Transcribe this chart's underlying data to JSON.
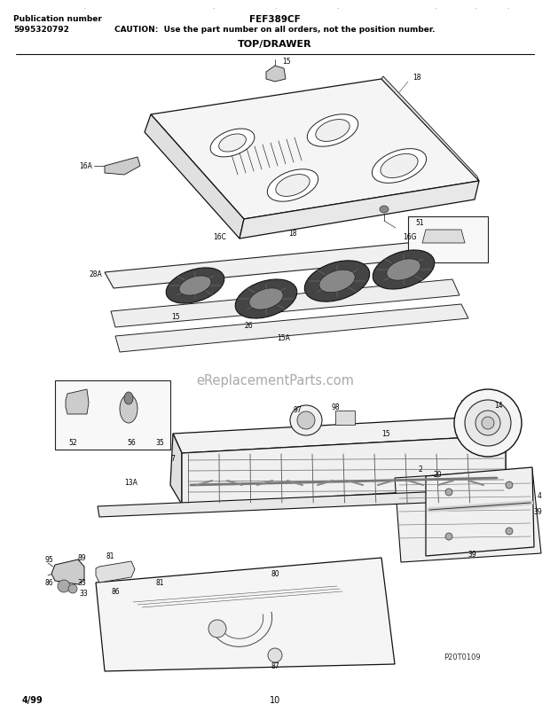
{
  "title_model": "FEF389CF",
  "title_caution": "CAUTION:  Use the part number on all orders, not the position number.",
  "title_section": "TOP/DRAWER",
  "pub_number_label": "Publication number",
  "pub_number": "5995320792",
  "page_date": "4/99",
  "page_number": "10",
  "image_id": "P20T0109",
  "bg_color": "#ffffff",
  "text_color": "#000000",
  "watermark_text": "eReplacementParts.com",
  "watermark_color": "#aaaaaa",
  "fig_width": 6.2,
  "fig_height": 8.04,
  "dpi": 100
}
